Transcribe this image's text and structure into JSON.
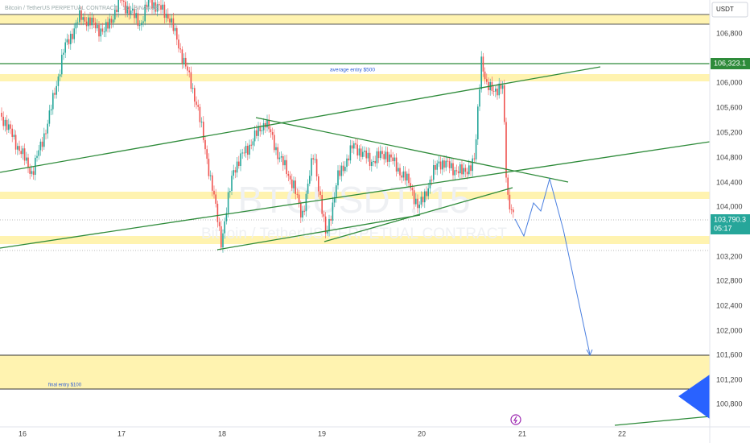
{
  "header": {
    "title": "Bitcoin / TetherUS PERPETUAL CONTRACT · 15 · BINANCE",
    "currency": "USDT"
  },
  "watermark": {
    "symbol": "BTCUSDT, 15",
    "name": "Bitcoin / TetherUS PERPETUAL CONTRACT"
  },
  "price_axis": [
    "106,800",
    "106,000",
    "105,600",
    "105,200",
    "104,800",
    "104,400",
    "104,000",
    "103,200",
    "102,800",
    "102,400",
    "102,000",
    "101,600",
    "101,200",
    "100,800"
  ],
  "price_tags": {
    "level": "106,323.1",
    "last": "103,790.3",
    "countdown": "05:17"
  },
  "time_axis": [
    "16",
    "17",
    "18",
    "19",
    "20",
    "21",
    "22"
  ],
  "annotations": {
    "average": "average entry $500",
    "final": "final entry $100"
  }
}
